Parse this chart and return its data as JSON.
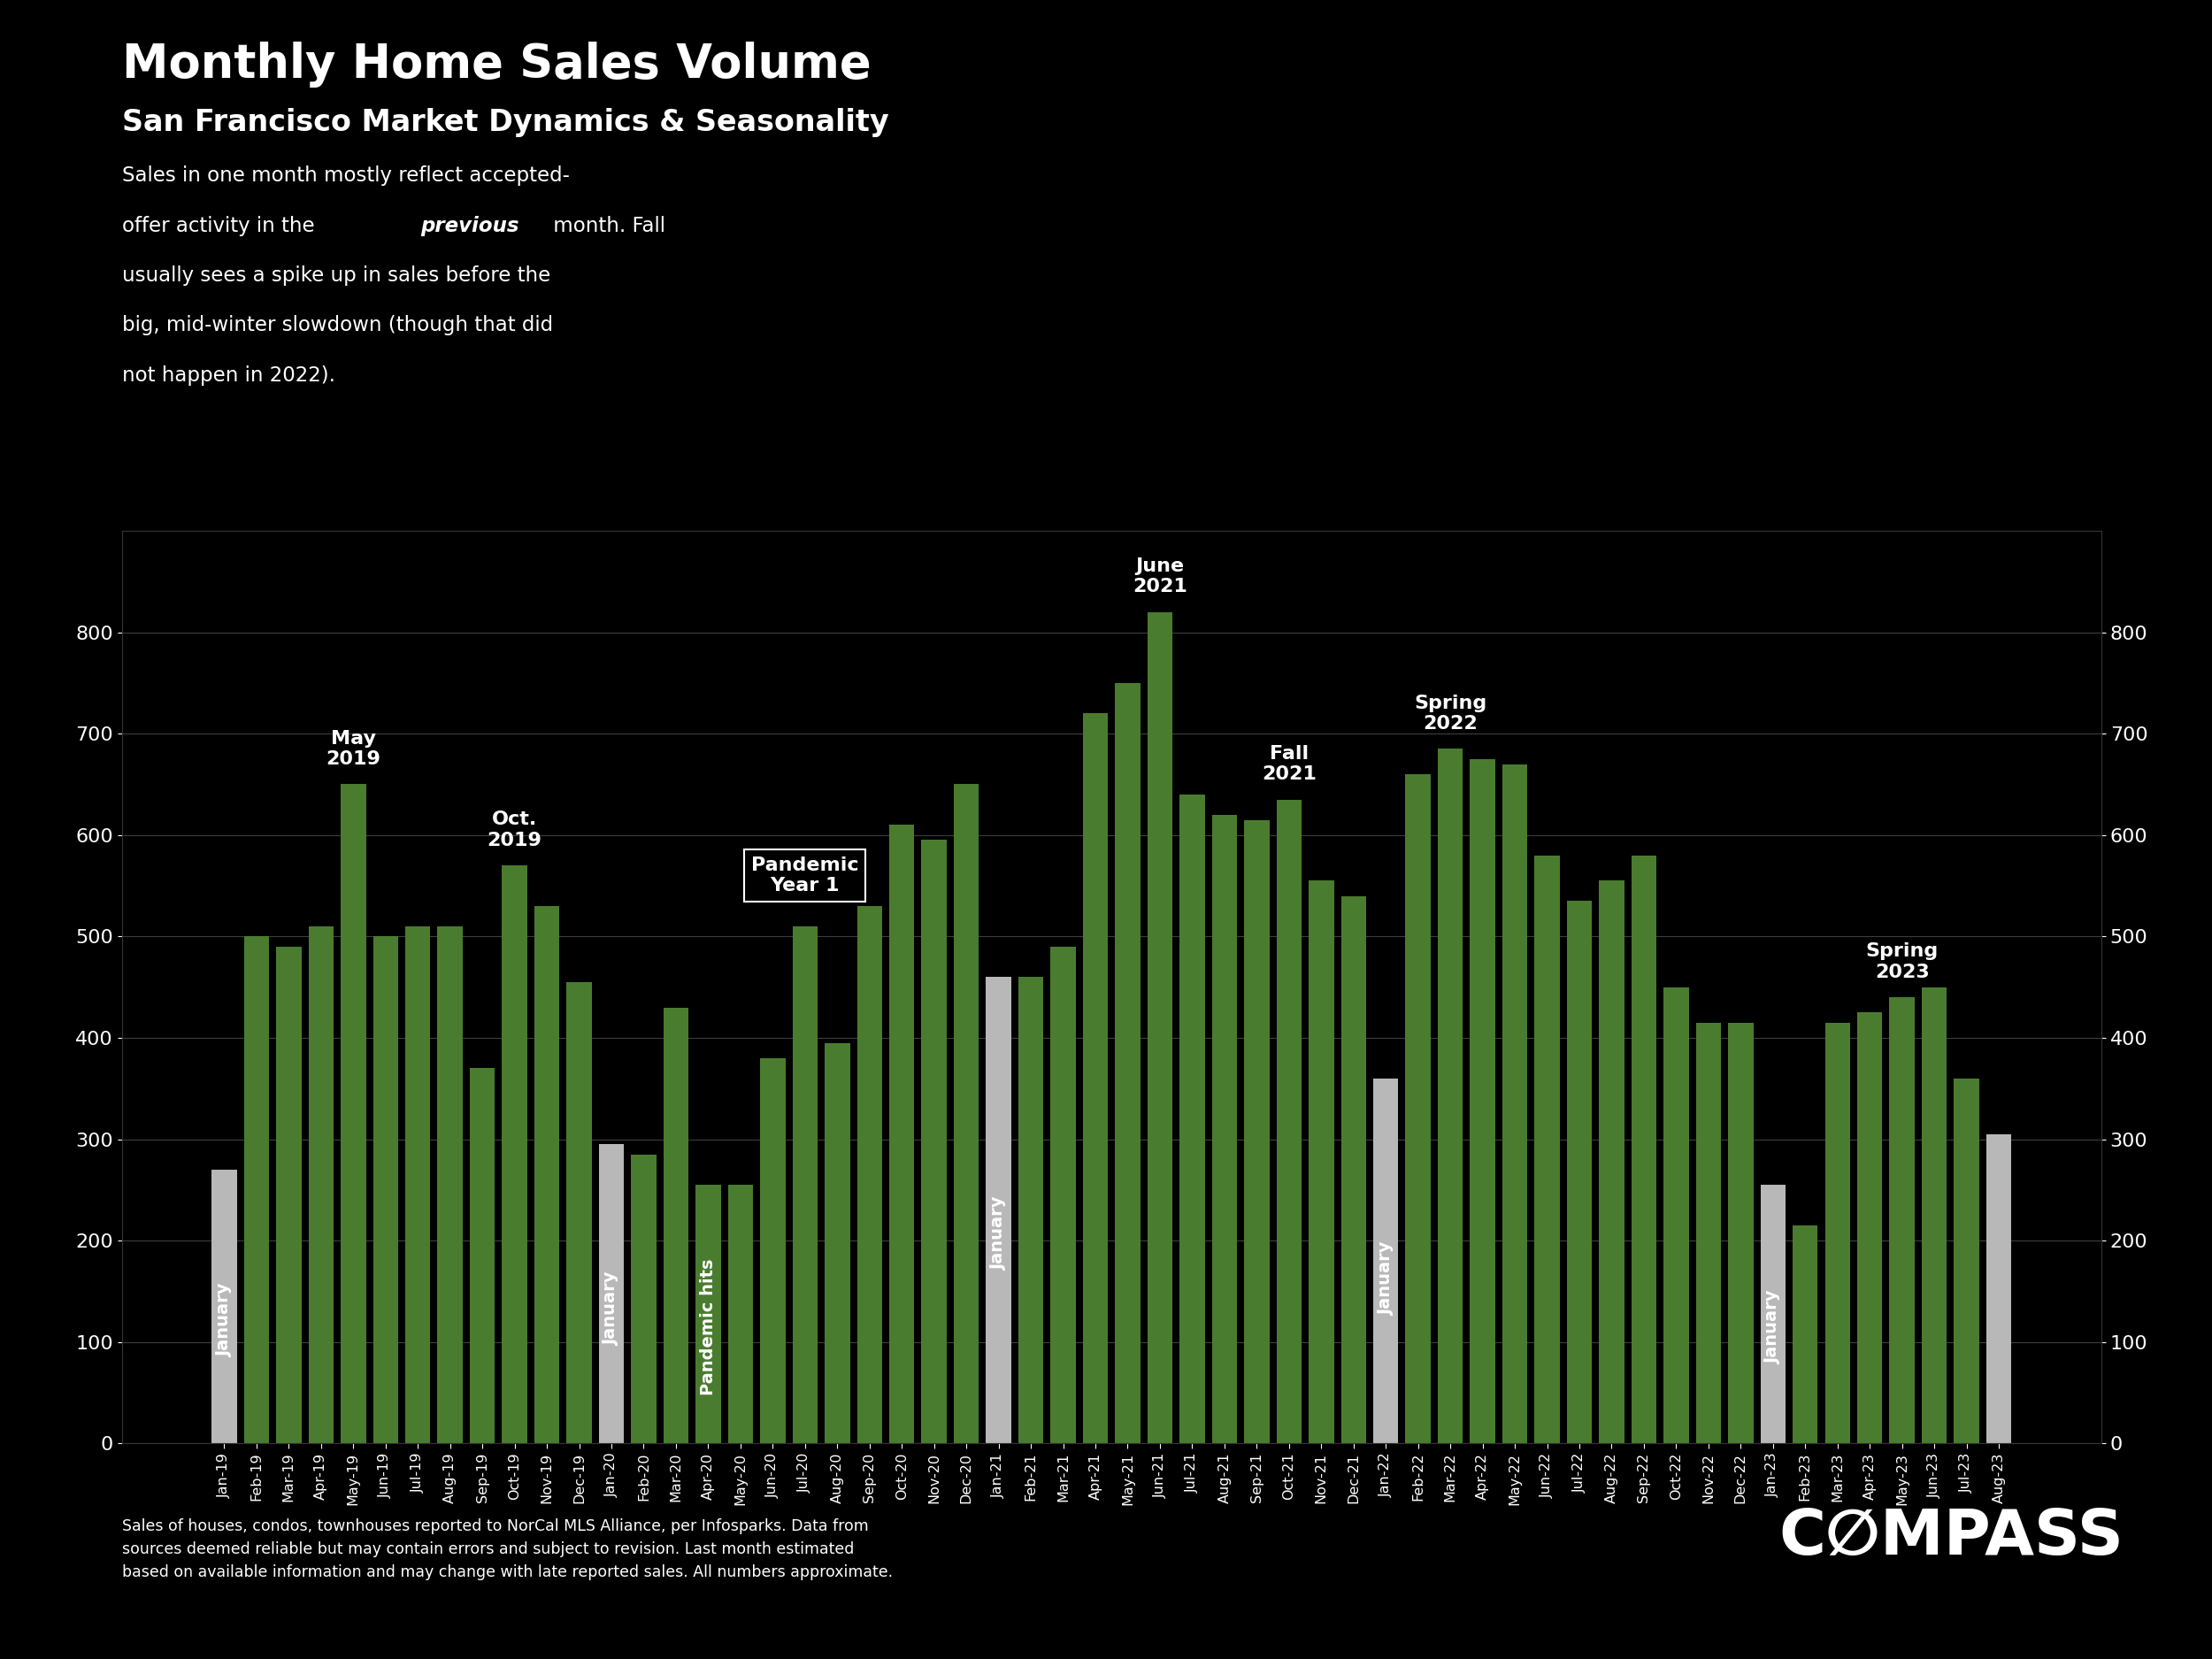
{
  "title": "Monthly Home Sales Volume",
  "subtitle": "San Francisco Market Dynamics & Seasonality",
  "footer": "Sales of houses, condos, townhouses reported to NorCal MLS Alliance, per Infosparks. Data from\nsources deemed reliable but may contain errors and subject to revision. Last month estimated\nbased on available information and may change with late reported sales. All numbers approximate.",
  "background_color": "#000000",
  "bar_color_green": "#4a7c2f",
  "bar_color_white": "#b8b8b8",
  "text_color": "#ffffff",
  "grid_color": "#444444",
  "categories": [
    "Jan-19",
    "Feb-19",
    "Mar-19",
    "Apr-19",
    "May-19",
    "Jun-19",
    "Jul-19",
    "Aug-19",
    "Sep-19",
    "Oct-19",
    "Nov-19",
    "Dec-19",
    "Jan-20",
    "Feb-20",
    "Mar-20",
    "Apr-20",
    "May-20",
    "Jun-20",
    "Jul-20",
    "Aug-20",
    "Sep-20",
    "Oct-20",
    "Nov-20",
    "Dec-20",
    "Jan-21",
    "Feb-21",
    "Mar-21",
    "Apr-21",
    "May-21",
    "Jun-21",
    "Jul-21",
    "Aug-21",
    "Sep-21",
    "Oct-21",
    "Nov-21",
    "Dec-21",
    "Jan-22",
    "Feb-22",
    "Mar-22",
    "Apr-22",
    "May-22",
    "Jun-22",
    "Jul-22",
    "Aug-22",
    "Sep-22",
    "Oct-22",
    "Nov-22",
    "Dec-22",
    "Jan-23",
    "Feb-23",
    "Mar-23",
    "Apr-23",
    "May-23",
    "Jun-23",
    "Jul-23",
    "Aug-23"
  ],
  "values": [
    270,
    500,
    490,
    510,
    650,
    500,
    510,
    510,
    370,
    570,
    530,
    455,
    295,
    285,
    430,
    255,
    255,
    380,
    510,
    395,
    530,
    610,
    595,
    650,
    460,
    460,
    490,
    720,
    750,
    820,
    640,
    620,
    615,
    635,
    555,
    540,
    360,
    660,
    685,
    675,
    670,
    580,
    535,
    555,
    580,
    450,
    415,
    415,
    255,
    215,
    415,
    425,
    440,
    450,
    360,
    305
  ],
  "bar_colors": [
    "white",
    "green",
    "green",
    "green",
    "green",
    "green",
    "green",
    "green",
    "green",
    "green",
    "green",
    "green",
    "white",
    "green",
    "green",
    "green",
    "green",
    "green",
    "green",
    "green",
    "green",
    "green",
    "green",
    "green",
    "white",
    "green",
    "green",
    "green",
    "green",
    "green",
    "green",
    "green",
    "green",
    "green",
    "green",
    "green",
    "white",
    "green",
    "green",
    "green",
    "green",
    "green",
    "green",
    "green",
    "green",
    "green",
    "green",
    "green",
    "white",
    "green",
    "green",
    "green",
    "green",
    "green",
    "green",
    "white"
  ],
  "ylim": [
    0,
    900
  ],
  "yticks": [
    0,
    100,
    200,
    300,
    400,
    500,
    600,
    700,
    800
  ]
}
